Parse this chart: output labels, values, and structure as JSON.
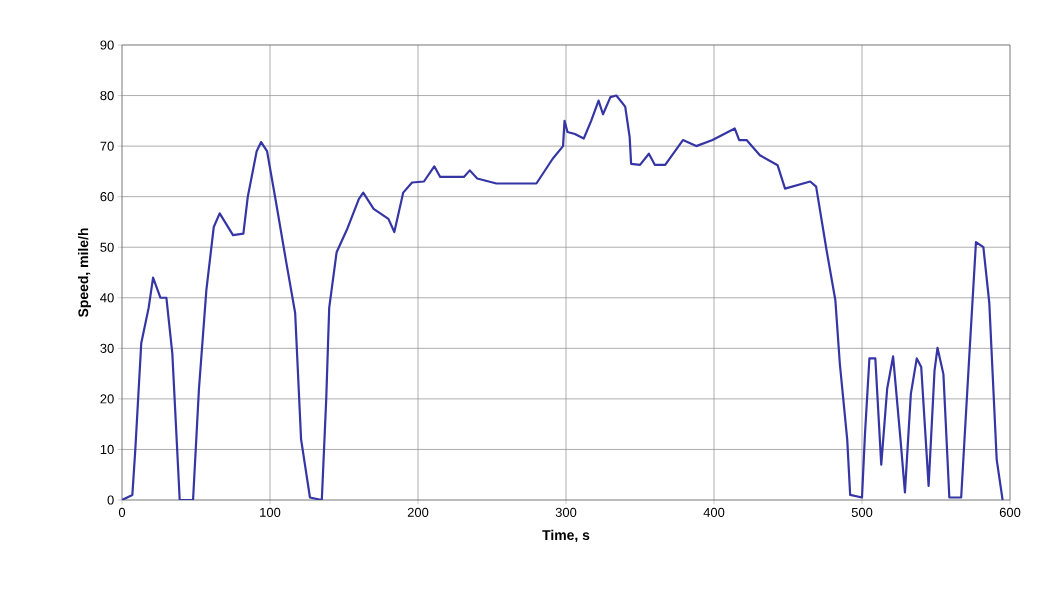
{
  "chart_data": {
    "type": "line",
    "xlabel": "Time, s",
    "ylabel": "Speed, mile/h",
    "xlim": [
      0,
      600
    ],
    "ylim": [
      0,
      90
    ],
    "xticks": [
      0,
      100,
      200,
      300,
      400,
      500,
      600
    ],
    "yticks": [
      0,
      10,
      20,
      30,
      40,
      50,
      60,
      70,
      80,
      90
    ],
    "grid": true,
    "marker": "none",
    "line_style": "solid",
    "series": [
      {
        "color": "#3535a5",
        "x": [
          0,
          7,
          9,
          13,
          18,
          21,
          26,
          30,
          34,
          39,
          48,
          52,
          57,
          62,
          66,
          75,
          82,
          85,
          91,
          94,
          98,
          104,
          111,
          117,
          121,
          127,
          135,
          138,
          140,
          145,
          152,
          160,
          163,
          170,
          180,
          184,
          190,
          196,
          204,
          211,
          215,
          231,
          235,
          240,
          253,
          264,
          280,
          291,
          298,
          299,
          301,
          306,
          312,
          317,
          322,
          325,
          330,
          334,
          340,
          343,
          344,
          350,
          356,
          360,
          367,
          379,
          388,
          399,
          414,
          417,
          422,
          431,
          443,
          448,
          465,
          469,
          476,
          482,
          485,
          490,
          492,
          500,
          502,
          505,
          509,
          513,
          517,
          521,
          526,
          529,
          533,
          537,
          540,
          545,
          549,
          551,
          555,
          559,
          567,
          572,
          577,
          582,
          586,
          591,
          595
        ],
        "values": [
          0,
          1,
          10,
          31,
          38,
          44,
          40,
          40,
          29,
          0,
          0,
          22,
          41.5,
          54,
          56.7,
          52.4,
          52.7,
          60,
          69,
          70.8,
          69,
          59,
          47,
          37,
          12,
          0.5,
          0,
          20,
          38,
          49,
          53.5,
          59.5,
          60.8,
          57.6,
          55.6,
          53,
          60.8,
          62.8,
          63,
          66,
          63.9,
          63.9,
          65.2,
          63.6,
          62.6,
          62.6,
          62.6,
          67.5,
          70,
          75,
          72.8,
          72.4,
          71.5,
          75,
          79,
          76.3,
          79.7,
          80,
          77.8,
          71.8,
          66.5,
          66.3,
          68.5,
          66.3,
          66.3,
          71.2,
          70,
          71.2,
          73.5,
          71.2,
          71.2,
          68.2,
          66.2,
          61.6,
          63,
          62,
          49.5,
          39.5,
          27,
          12,
          1,
          0.5,
          13,
          28,
          28,
          7,
          22,
          28.4,
          12,
          1.5,
          21,
          28,
          26.3,
          2.8,
          25.6,
          30.1,
          24.9,
          0.5,
          0.5,
          26,
          51,
          50,
          39,
          8,
          0
        ]
      }
    ]
  }
}
